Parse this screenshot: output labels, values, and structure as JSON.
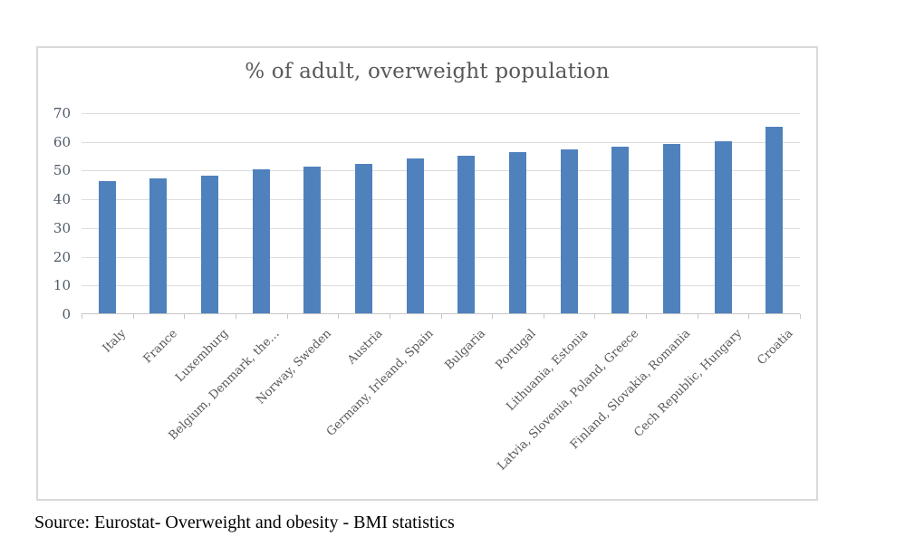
{
  "chart_data": {
    "type": "bar",
    "title": "% of adult, overweight population",
    "categories": [
      "Italy",
      "France",
      "Luxemburg",
      "Belgium, Denmark, the…",
      "Norway, Sweden",
      "Austria",
      "Germany, Irleand, Spain",
      "Bulgaria",
      "Portugal",
      "Lithuania, Estonia",
      "Latvia, Slovenia, Poland, Greece",
      "Finland, Slovakia, Romania",
      "Cech Republic, Hungary",
      "Croatia"
    ],
    "values": [
      46,
      47,
      48,
      50,
      51,
      52,
      54,
      55,
      56,
      57,
      58,
      59,
      60,
      65
    ],
    "xlabel": "",
    "ylabel": "",
    "ylim": [
      0,
      70
    ],
    "yticks": [
      0,
      10,
      20,
      30,
      40,
      50,
      60,
      70
    ],
    "grid": true,
    "legend_position": "none",
    "bar_color": "#4F81BD",
    "gridline_color": "#DCDCDC",
    "axis_line_color": "#C6C6C6",
    "frame_border_color": "#D9D9D9",
    "title_color": "#595959",
    "ytick_label_color": "#4E5A68",
    "xtick_label_color": "#595959"
  },
  "footer": {
    "source_note": "Source: Eurostat- Overweight and obesity - BMI statistics"
  }
}
